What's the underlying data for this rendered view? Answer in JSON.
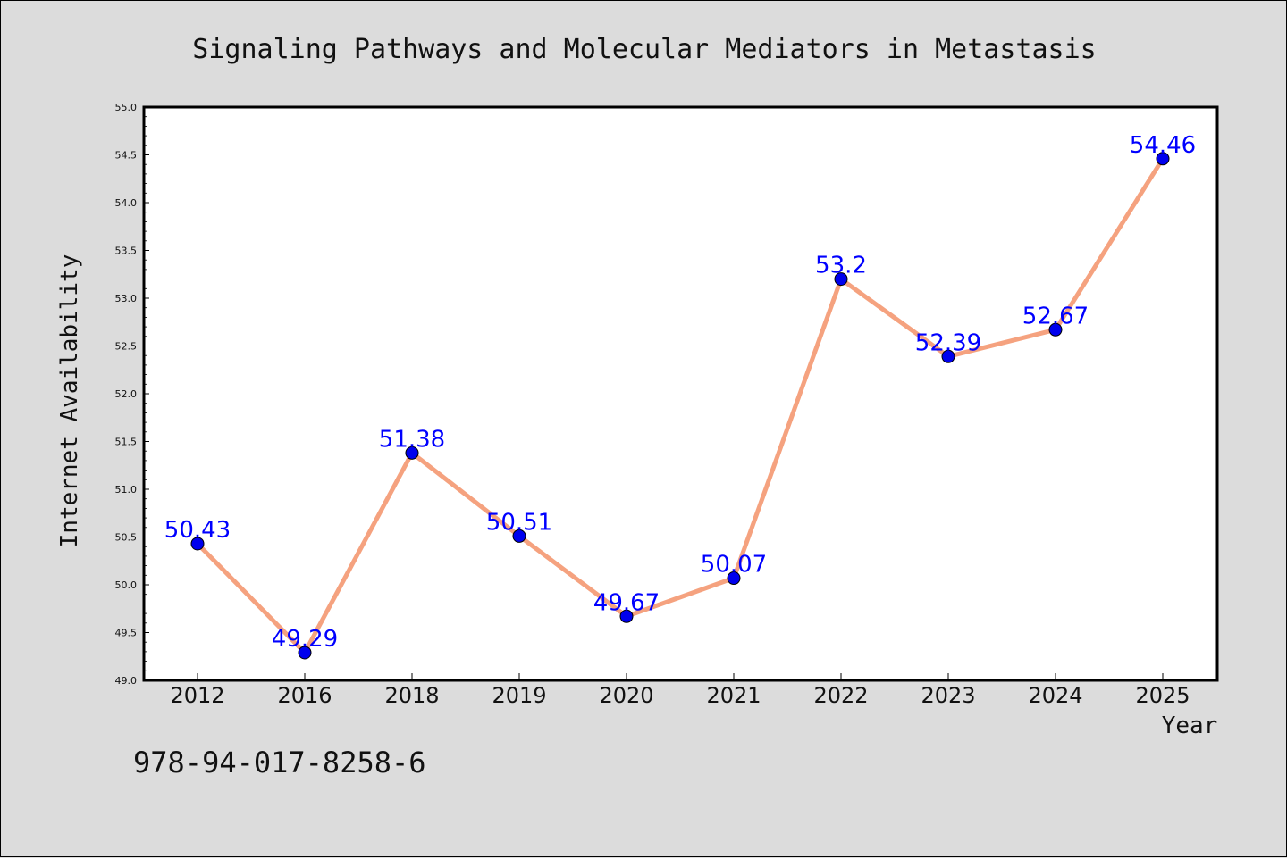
{
  "chart_data": {
    "type": "line",
    "title": "Signaling Pathways and Molecular Mediators in Metastasis",
    "xlabel": "Year",
    "ylabel": "Internet Availability",
    "categories": [
      "2012",
      "2016",
      "2018",
      "2019",
      "2020",
      "2021",
      "2022",
      "2023",
      "2024",
      "2025"
    ],
    "values": [
      50.43,
      49.29,
      51.38,
      50.51,
      49.67,
      50.07,
      53.2,
      52.39,
      52.67,
      54.46
    ],
    "data_labels": [
      "50.43",
      "49.29",
      "51.38",
      "50.51",
      "49.67",
      "50.07",
      "53.2",
      "52.39",
      "52.67",
      "54.46"
    ],
    "ylim": [
      49.0,
      55.0
    ],
    "yticks": [
      "49.0",
      "49.5",
      "50.0",
      "50.5",
      "51.0",
      "51.5",
      "52.0",
      "52.5",
      "53.0",
      "53.5",
      "54.0",
      "54.5",
      "55.0"
    ],
    "grid": false,
    "colors": {
      "line": "#f5a27f",
      "marker": "#0000ee",
      "data_label": "#0000ff",
      "plot_background": "#ffffff",
      "figure_background": "#dcdcdc"
    }
  },
  "footnote": "978-94-017-8258-6"
}
